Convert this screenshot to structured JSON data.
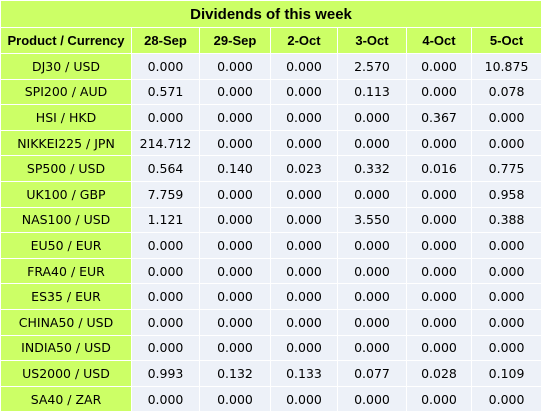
{
  "table": {
    "title": "Dividends of this week",
    "columns": [
      "Product / Currency",
      "28-Sep",
      "29-Sep",
      "2-Oct",
      "3-Oct",
      "4-Oct",
      "5-Oct"
    ],
    "rows": [
      {
        "product": "DJ30 / USD",
        "values": [
          "0.000",
          "0.000",
          "0.000",
          "2.570",
          "0.000",
          "10.875"
        ]
      },
      {
        "product": "SPI200 / AUD",
        "values": [
          "0.571",
          "0.000",
          "0.000",
          "0.113",
          "0.000",
          "0.078"
        ]
      },
      {
        "product": "HSI / HKD",
        "values": [
          "0.000",
          "0.000",
          "0.000",
          "0.000",
          "0.367",
          "0.000"
        ]
      },
      {
        "product": "NIKKEI225 / JPN",
        "values": [
          "214.712",
          "0.000",
          "0.000",
          "0.000",
          "0.000",
          "0.000"
        ]
      },
      {
        "product": "SP500 / USD",
        "values": [
          "0.564",
          "0.140",
          "0.023",
          "0.332",
          "0.016",
          "0.775"
        ]
      },
      {
        "product": "UK100 / GBP",
        "values": [
          "7.759",
          "0.000",
          "0.000",
          "0.000",
          "0.000",
          "0.958"
        ]
      },
      {
        "product": "NAS100 / USD",
        "values": [
          "1.121",
          "0.000",
          "0.000",
          "3.550",
          "0.000",
          "0.388"
        ]
      },
      {
        "product": "EU50 / EUR",
        "values": [
          "0.000",
          "0.000",
          "0.000",
          "0.000",
          "0.000",
          "0.000"
        ]
      },
      {
        "product": "FRA40 / EUR",
        "values": [
          "0.000",
          "0.000",
          "0.000",
          "0.000",
          "0.000",
          "0.000"
        ]
      },
      {
        "product": "ES35 / EUR",
        "values": [
          "0.000",
          "0.000",
          "0.000",
          "0.000",
          "0.000",
          "0.000"
        ]
      },
      {
        "product": "CHINA50 / USD",
        "values": [
          "0.000",
          "0.000",
          "0.000",
          "0.000",
          "0.000",
          "0.000"
        ]
      },
      {
        "product": "INDIA50 / USD",
        "values": [
          "0.000",
          "0.000",
          "0.000",
          "0.000",
          "0.000",
          "0.000"
        ]
      },
      {
        "product": "US2000 / USD",
        "values": [
          "0.993",
          "0.132",
          "0.133",
          "0.077",
          "0.028",
          "0.109"
        ]
      },
      {
        "product": "SA40 / ZAR",
        "values": [
          "0.000",
          "0.000",
          "0.000",
          "0.000",
          "0.000",
          "0.000"
        ]
      }
    ]
  },
  "colors": {
    "header_bg": "#ccff66",
    "cell_bg": "#edf1f8",
    "border": "#ffffff"
  }
}
